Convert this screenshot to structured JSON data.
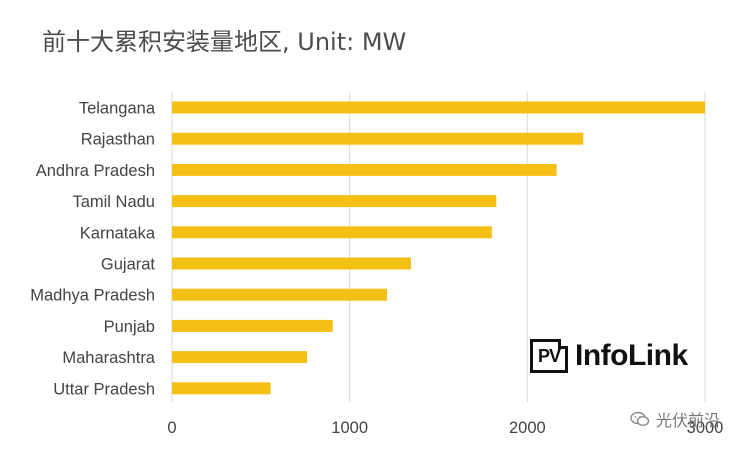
{
  "chart_data": {
    "type": "bar",
    "orientation": "horizontal",
    "title": "前十大累积安装量地区, Unit: MW",
    "categories": [
      "Telangana",
      "Rajasthan",
      "Andhra Pradesh",
      "Tamil Nadu",
      "Karnataka",
      "Gujarat",
      "Madhya Pradesh",
      "Punjab",
      "Maharashtra",
      "Uttar Pradesh"
    ],
    "values": [
      3000,
      2315,
      2165,
      1825,
      1800,
      1345,
      1210,
      905,
      760,
      555
    ],
    "xlim": [
      0,
      3000
    ],
    "xticks": [
      "0",
      "1000",
      "2000",
      "3000"
    ],
    "grid": "vertical",
    "bar_color": "#f5c015"
  },
  "logo": {
    "box_text": "PV",
    "text": "InfoLink"
  },
  "watermark": {
    "icon": "wechat-icon",
    "text": "光伏前沿"
  }
}
